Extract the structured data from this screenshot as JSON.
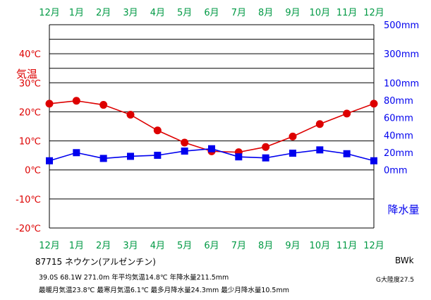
{
  "station": {
    "title": "87715  ネウケン(アルゼンチン)"
  },
  "info": {
    "line1": "39.0S  68.1W  271.0m  年平均気温14.8℃  年降水量211.5mm",
    "line2": "最暖月気温23.8℃ 最寒月気温6.1℃ 最多月降水量24.3mm 最少月降水量10.5mm"
  },
  "climate_class": "BWk",
  "continentality": "G大陸度27.5",
  "colors": {
    "temperature": "#dd0000",
    "precipitation": "#0000ee",
    "month_label": "#009944",
    "frame": "#000000"
  },
  "chart_data": {
    "type": "line",
    "categories": [
      "12月",
      "1月",
      "2月",
      "3月",
      "4月",
      "5月",
      "6月",
      "7月",
      "8月",
      "9月",
      "10月",
      "11月",
      "12月"
    ],
    "series": [
      {
        "name": "気温",
        "unit": "℃",
        "axis": "left",
        "color": "#dd0000",
        "marker": "circle",
        "values": [
          22.8,
          23.8,
          22.4,
          19.0,
          13.6,
          9.4,
          6.4,
          6.1,
          7.9,
          11.5,
          15.8,
          19.4,
          22.8
        ]
      },
      {
        "name": "降水量",
        "unit": "mm",
        "axis": "right",
        "color": "#0000ee",
        "marker": "square",
        "values": [
          10.5,
          19.8,
          13.2,
          15.6,
          16.8,
          21.6,
          24.3,
          15.0,
          13.8,
          19.2,
          23.0,
          18.6,
          10.5
        ]
      }
    ],
    "left_axis": {
      "label": "気温",
      "ticks": [
        "40℃",
        "30℃",
        "20℃",
        "10℃",
        "0℃",
        "-10℃",
        "-20℃"
      ],
      "values": [
        40,
        30,
        20,
        10,
        0,
        -10,
        -20
      ],
      "range": [
        -20,
        50
      ]
    },
    "right_axis": {
      "label": "降水量",
      "ticks": [
        "500mm",
        "300mm",
        "100mm",
        "80mm",
        "60mm",
        "40mm",
        "20mm",
        "0mm"
      ],
      "linear_range": [
        0,
        100
      ],
      "upper_ticks": [
        100,
        200,
        300,
        400,
        500
      ]
    },
    "grid": "horizontal"
  }
}
